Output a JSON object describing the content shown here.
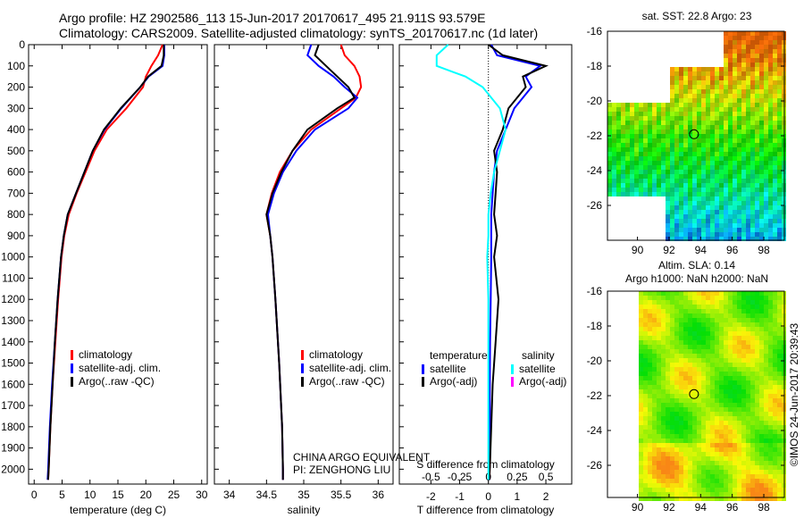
{
  "header": {
    "line1": "Argo profile: HZ 2902586_113 15-Jun-2017 20170617_495 21.911S 93.579E",
    "line2": "Climatology: CARS2009. Satellite-adjusted climatology: synTS_20170617.nc (1d later)"
  },
  "colors": {
    "climatology": "#ff0000",
    "satellite": "#0000ff",
    "argo": "#000000",
    "sal_satellite": "#00ffff",
    "sal_argo": "#ff00ff"
  },
  "chart_data": [
    {
      "type": "line",
      "id": "temperature",
      "xlabel": "temperature (deg C)",
      "xlim": [
        -1,
        31
      ],
      "ylim": [
        2070,
        0
      ],
      "xticks": [
        "0",
        "5",
        "10",
        "15",
        "20",
        "25",
        "30"
      ],
      "yticks": [
        "0",
        "100",
        "200",
        "300",
        "400",
        "500",
        "600",
        "700",
        "800",
        "900",
        "1000",
        "1100",
        "1200",
        "1300",
        "1400",
        "1500",
        "1600",
        "1700",
        "1800",
        "1900",
        "2000"
      ],
      "depth": [
        0,
        50,
        100,
        150,
        200,
        300,
        400,
        500,
        600,
        700,
        800,
        900,
        1000,
        1200,
        1400,
        1600,
        1800,
        2000,
        2050
      ],
      "series": [
        {
          "name": "climatology",
          "color": "#ff0000",
          "values": [
            23,
            22.2,
            21,
            20,
            19.5,
            16.5,
            13,
            10.8,
            9.2,
            7.6,
            6.2,
            5.4,
            4.9,
            4.3,
            3.8,
            3.3,
            2.9,
            2.6,
            2.5
          ]
        },
        {
          "name": "satellite-adj. clim.",
          "color": "#0000ff",
          "values": [
            23.3,
            23.3,
            23,
            20.5,
            19,
            15.6,
            12.6,
            10.5,
            9,
            7.5,
            6,
            5.3,
            4.8,
            4.2,
            3.7,
            3.2,
            2.8,
            2.5,
            2.4
          ]
        },
        {
          "name": "Argo(..raw -QC)",
          "color": "#000000",
          "values": [
            23.2,
            23.2,
            22.8,
            20.4,
            19,
            15.5,
            12.5,
            10.5,
            9,
            7.5,
            6,
            5.3,
            4.8,
            4.2,
            3.7,
            3.3,
            2.9,
            2.6,
            2.5
          ]
        }
      ],
      "legend": [
        "climatology",
        "satellite-adj. clim.",
        "Argo(..raw -QC)"
      ]
    },
    {
      "type": "line",
      "id": "salinity",
      "xlabel": "salinity",
      "xlim": [
        33.8,
        36.2
      ],
      "ylim": [
        2070,
        0
      ],
      "xticks": [
        "34",
        "34.5",
        "35",
        "35.5",
        "36"
      ],
      "depth": [
        0,
        50,
        100,
        150,
        200,
        250,
        300,
        400,
        500,
        600,
        700,
        800,
        900,
        1000,
        1200,
        1500,
        1800,
        2000,
        2050
      ],
      "series": [
        {
          "name": "climatology",
          "color": "#ff0000",
          "values": [
            35.5,
            35.55,
            35.68,
            35.75,
            35.77,
            35.7,
            35.5,
            35.1,
            34.85,
            34.68,
            34.57,
            34.5,
            34.55,
            34.58,
            34.62,
            34.67,
            34.71,
            34.72,
            34.72
          ]
        },
        {
          "name": "satellite-adj. clim.",
          "color": "#0000ff",
          "values": [
            35.1,
            35.05,
            35.2,
            35.4,
            35.55,
            35.72,
            35.6,
            35.15,
            34.9,
            34.72,
            34.6,
            34.52,
            34.55,
            34.58,
            34.62,
            34.67,
            34.71,
            34.72,
            34.72
          ]
        },
        {
          "name": "Argo(..raw -QC)",
          "color": "#000000",
          "values": [
            35.2,
            35.15,
            35.3,
            35.45,
            35.6,
            35.68,
            35.45,
            35.05,
            34.85,
            34.7,
            34.58,
            34.5,
            34.55,
            34.58,
            34.62,
            34.67,
            34.71,
            34.72,
            34.72
          ]
        }
      ],
      "legend": [
        "climatology",
        "satellite-adj. clim.",
        "Argo(..raw -QC)"
      ],
      "annotation": [
        "CHINA ARGO EQUIVALENT",
        "PI: ZENGHONG LIU"
      ]
    },
    {
      "type": "line",
      "id": "difference",
      "xlabel": "T difference from climatology",
      "x2label": "S difference from climatology",
      "xlim": [
        -3.1,
        2.9
      ],
      "ylim": [
        2070,
        0
      ],
      "xticks": [
        "-2",
        "-1",
        "0",
        "1",
        "2"
      ],
      "x2ticks": [
        "-0.5",
        "-0.25",
        "0",
        "0.25",
        "0.5"
      ],
      "depth": [
        0,
        50,
        100,
        150,
        200,
        300,
        400,
        500,
        600,
        700,
        800,
        900,
        1000,
        1200,
        1400,
        1600,
        1800,
        2000,
        2050
      ],
      "series": [
        {
          "name": "temperature satellite",
          "color": "#0000ff",
          "unit": "T",
          "values": [
            0.1,
            0.3,
            1.8,
            1.3,
            1.5,
            0.9,
            0.6,
            0.3,
            0.2,
            0.15,
            0.1,
            0.1,
            0.1,
            0.08,
            0.06,
            0.05,
            0.05,
            0.04,
            0.03
          ]
        },
        {
          "name": "temperature Argo(-adj)",
          "color": "#000000",
          "unit": "T",
          "values": [
            0,
            0.5,
            2,
            1.2,
            1.3,
            0.7,
            0.5,
            0.2,
            0.3,
            0.25,
            0.2,
            0.3,
            0.2,
            0.35,
            0.25,
            0.15,
            0.1,
            0.05,
            0.03
          ]
        },
        {
          "name": "salinity satellite",
          "color": "#00ffff",
          "unit": "S",
          "values": [
            -0.35,
            -0.45,
            -0.45,
            -0.2,
            -0.05,
            0.1,
            0.15,
            0.1,
            0.05,
            0.02,
            0,
            0,
            -0.01,
            0,
            0,
            0,
            0,
            0,
            0
          ]
        }
      ],
      "legend_titles": [
        "temperature",
        "salinity"
      ],
      "legend": [
        "satellite",
        "Argo(-adj)",
        "satellite",
        "Argo(-adj)"
      ]
    }
  ],
  "map1": {
    "title": "sat. SST: 22.8  Argo: 23",
    "lon_ticks": [
      "90",
      "92",
      "94",
      "96",
      "98"
    ],
    "lat_ticks": [
      "-16",
      "-18",
      "-20",
      "-22",
      "-24",
      "-26"
    ],
    "argo_lon": 93.579,
    "argo_lat": -21.911
  },
  "map2": {
    "title1": "Altim. SLA: 0.14",
    "title2": "Argo h1000: NaN h2000: NaN",
    "lon_ticks": [
      "90",
      "92",
      "94",
      "96",
      "98"
    ],
    "lat_ticks": [
      "-16",
      "-18",
      "-20",
      "-22",
      "-24",
      "-26"
    ],
    "argo_lon": 93.579,
    "argo_lat": -21.911
  },
  "credit": "©IMOS 24-Jun-2017 20:39:43"
}
